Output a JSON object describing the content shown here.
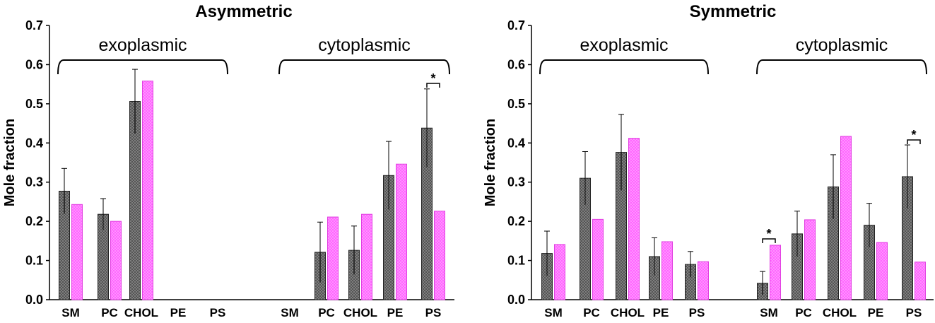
{
  "chart_data": [
    {
      "type": "bar",
      "title": "Asymmetric",
      "ylabel": "Mole fraction",
      "xlabel": "",
      "ylim": [
        0,
        0.7
      ],
      "yticks": [
        "0.0",
        "0.1",
        "0.2",
        "0.3",
        "0.4",
        "0.5",
        "0.6",
        "0.7"
      ],
      "groups": [
        "exoplasmic",
        "cytoplasmic"
      ],
      "categories": [
        "SM",
        "PC",
        "CHOL",
        "PE",
        "PS",
        "SM",
        "PC",
        "CHOL",
        "PE",
        "PS"
      ],
      "series": [
        {
          "color": "#555555",
          "pattern": "dots-on-dark",
          "values": [
            0.277,
            0.218,
            0.506,
            null,
            null,
            null,
            0.121,
            0.126,
            0.317,
            0.438
          ],
          "errors": [
            0.058,
            0.04,
            0.082,
            null,
            null,
            null,
            0.077,
            0.062,
            0.087,
            0.1
          ]
        },
        {
          "color": "#ff66ff",
          "pattern": "light-grid",
          "values": [
            0.243,
            0.2,
            0.558,
            null,
            null,
            null,
            0.211,
            0.218,
            0.346,
            0.226
          ],
          "errors": [
            null,
            null,
            null,
            null,
            null,
            null,
            null,
            null,
            null,
            null
          ]
        }
      ],
      "significance": [
        {
          "category_index": 9,
          "label": "*"
        }
      ]
    },
    {
      "type": "bar",
      "title": "Symmetric",
      "ylabel": "Mole fraction",
      "xlabel": "",
      "ylim": [
        0,
        0.7
      ],
      "yticks": [
        "0.0",
        "0.1",
        "0.2",
        "0.3",
        "0.4",
        "0.5",
        "0.6",
        "0.7"
      ],
      "groups": [
        "exoplasmic",
        "cytoplasmic"
      ],
      "categories": [
        "SM",
        "PC",
        "CHOL",
        "PE",
        "PS",
        "SM",
        "PC",
        "CHOL",
        "PE",
        "PS"
      ],
      "series": [
        {
          "color": "#555555",
          "pattern": "dots-on-dark",
          "values": [
            0.118,
            0.31,
            0.376,
            0.11,
            0.09,
            0.042,
            0.168,
            0.288,
            0.19,
            0.314
          ],
          "errors": [
            0.057,
            0.068,
            0.097,
            0.048,
            0.033,
            0.03,
            0.058,
            0.082,
            0.056,
            0.081
          ]
        },
        {
          "color": "#ff66ff",
          "pattern": "light-grid",
          "values": [
            0.141,
            0.205,
            0.412,
            0.148,
            0.097,
            0.139,
            0.204,
            0.417,
            0.146,
            0.096
          ],
          "errors": [
            null,
            null,
            null,
            null,
            null,
            null,
            null,
            null,
            null,
            null
          ]
        }
      ],
      "significance": [
        {
          "category_index": 5,
          "label": "*"
        },
        {
          "category_index": 9,
          "label": "*"
        }
      ]
    }
  ]
}
